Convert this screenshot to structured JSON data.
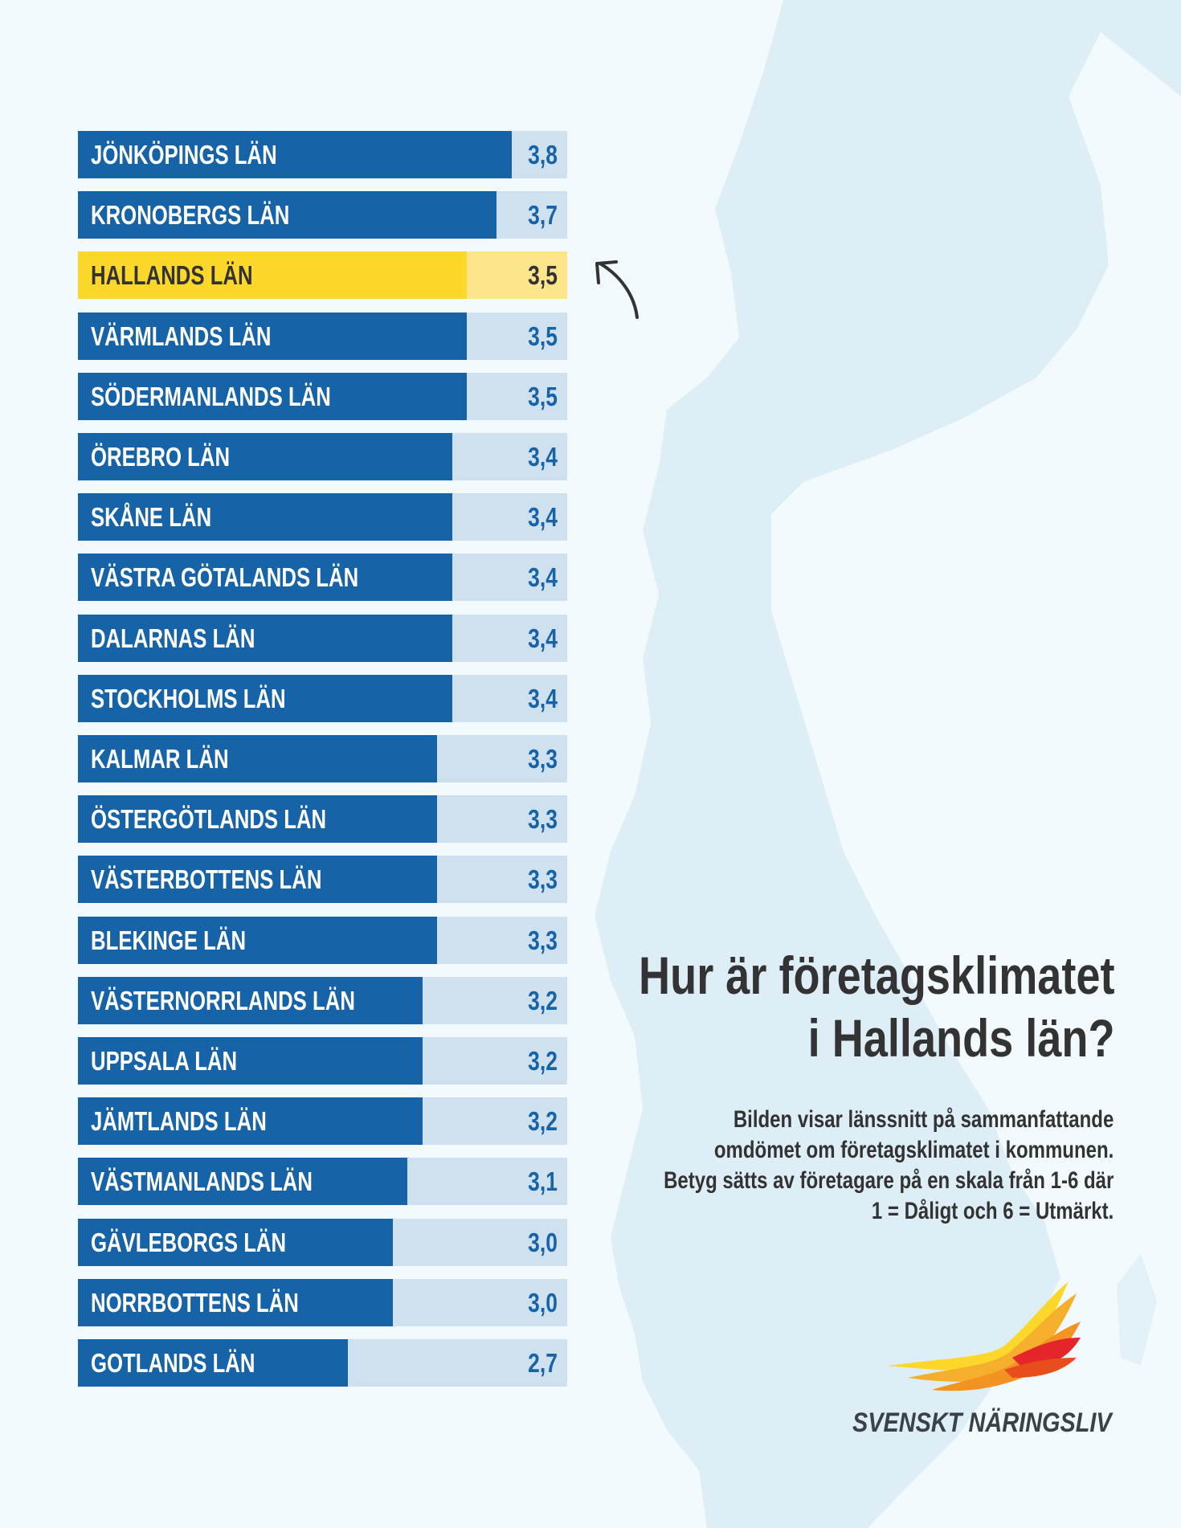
{
  "chart_data": {
    "type": "bar",
    "orientation": "horizontal",
    "highlight": "HALLANDS LÄN",
    "categories": [
      "JÖNKÖPINGS LÄN",
      "KRONOBERGS LÄN",
      "HALLANDS LÄN",
      "VÄRMLANDS LÄN",
      "SÖDERMANLANDS LÄN",
      "ÖREBRO LÄN",
      "SKÅNE LÄN",
      "VÄSTRA GÖTALANDS LÄN",
      "DALARNAS LÄN",
      "STOCKHOLMS LÄN",
      "KALMAR LÄN",
      "ÖSTERGÖTLANDS LÄN",
      "VÄSTERBOTTENS LÄN",
      "BLEKINGE LÄN",
      "VÄSTERNORRLANDS LÄN",
      "UPPSALA LÄN",
      "JÄMTLANDS LÄN",
      "VÄSTMANLANDS LÄN",
      "GÄVLEBORGS LÄN",
      "NORRBOTTENS LÄN",
      "GOTLANDS LÄN"
    ],
    "values": [
      3.8,
      3.7,
      3.5,
      3.5,
      3.5,
      3.4,
      3.4,
      3.4,
      3.4,
      3.4,
      3.3,
      3.3,
      3.3,
      3.3,
      3.2,
      3.2,
      3.2,
      3.1,
      3.0,
      3.0,
      2.7
    ],
    "value_labels": [
      "3,8",
      "3,7",
      "3,5",
      "3,5",
      "3,5",
      "3,4",
      "3,4",
      "3,4",
      "3,4",
      "3,4",
      "3,3",
      "3,3",
      "3,3",
      "3,3",
      "3,2",
      "3,2",
      "3,2",
      "3,1",
      "3,0",
      "3,0",
      "2,7"
    ],
    "colors": {
      "bar": "#1763a7",
      "track": "#cfe1ee",
      "highlight_bar": "#fdd82b",
      "highlight_track": "#fde58a"
    }
  },
  "heading": {
    "line1": "Hur är företagsklimatet",
    "line2": "i Hallands län?"
  },
  "description": [
    "Bilden visar länssnitt på sammanfattande",
    "omdömet om företagsklimatet i kommunen.",
    "Betyg sätts av företagare på en skala från 1-6 där",
    "1 = Dåligt och 6 = Utmärkt."
  ],
  "brand": "SVENSKT NÄRINGSLIV",
  "colors": {
    "background": "#f2fafd",
    "map": "#deeef7",
    "text": "#333333"
  }
}
